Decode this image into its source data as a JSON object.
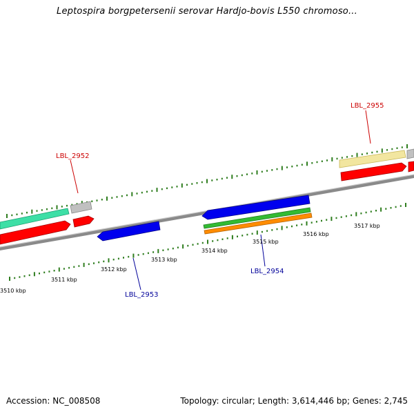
{
  "title": "Leptospira borgpetersenii serovar Hardjo-bovis L550 chromoso...",
  "footer": {
    "accession": "Accession: NC_008508",
    "summary": "Topology: circular; Length: 3,614,446 bp; Genes: 2,745"
  },
  "axis": {
    "unit": "kbp",
    "ticks": [
      {
        "kbp": 3510,
        "label": "3510 kbp"
      },
      {
        "kbp": 3511,
        "label": "3511 kbp"
      },
      {
        "kbp": 3512,
        "label": "3512 kbp"
      },
      {
        "kbp": 3513,
        "label": "3513 kbp"
      },
      {
        "kbp": 3514,
        "label": "3514 kbp"
      },
      {
        "kbp": 3515,
        "label": "3515 kbp"
      },
      {
        "kbp": 3516,
        "label": "3516 kbp"
      },
      {
        "kbp": 3517,
        "label": "3517 kbp"
      }
    ]
  },
  "genes": [
    {
      "id": "LBL_2952",
      "strand": "forward",
      "label_color": "#cc0000"
    },
    {
      "id": "LBL_2953",
      "strand": "reverse",
      "label_color": "#000099"
    },
    {
      "id": "LBL_2954",
      "strand": "reverse",
      "label_color": "#000099"
    },
    {
      "id": "LBL_2955",
      "strand": "forward",
      "label_color": "#cc0000"
    }
  ],
  "colors": {
    "backbone": "#808080",
    "tick": "#2e7d1e",
    "forward_cds": "#ff0000",
    "reverse_cds": "#0000ee",
    "teal": "#3ddfa6",
    "gray_feature": "#c0c0c0",
    "cream_feature": "#f2e6a0",
    "green_feature": "#33bb33",
    "orange_feature": "#ff8c00",
    "forward_label": "#cc0000",
    "reverse_label": "#000099"
  }
}
